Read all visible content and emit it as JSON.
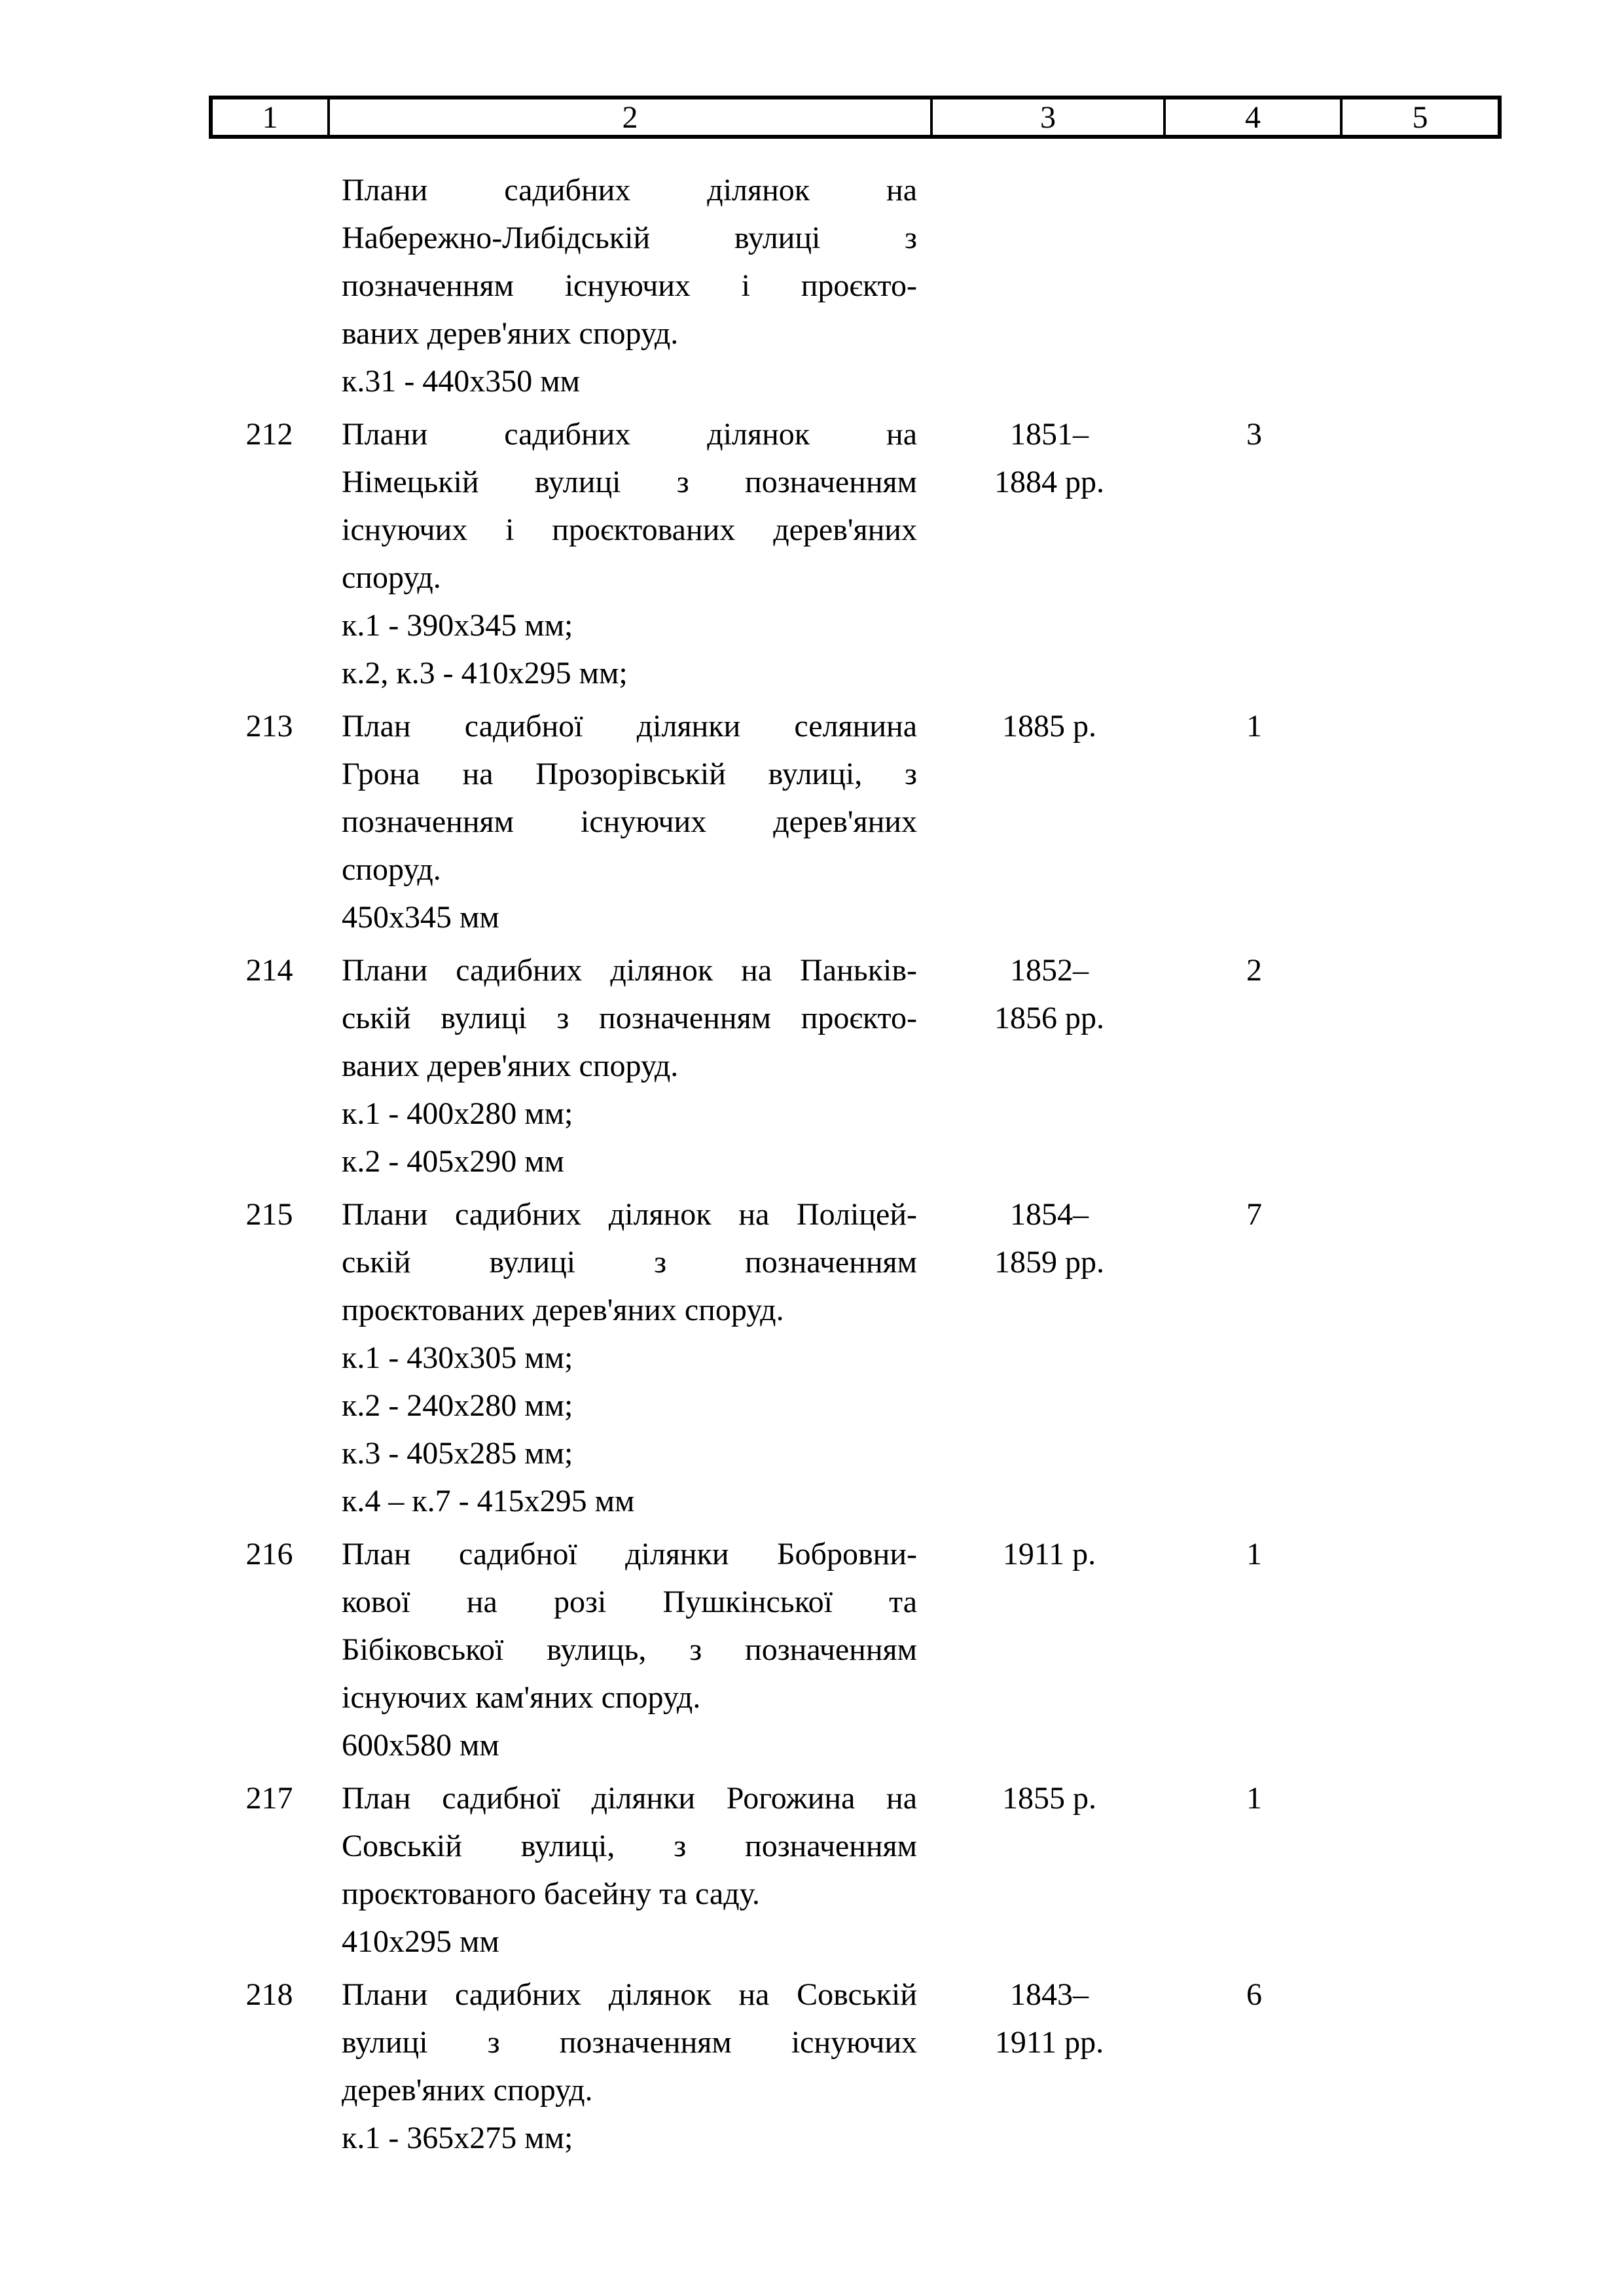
{
  "colors": {
    "background": "#ffffff",
    "text": "#000000",
    "border": "#000000"
  },
  "table": {
    "header": {
      "columns": [
        "1",
        "2",
        "3",
        "4",
        "5"
      ]
    },
    "rows": [
      {
        "number": "",
        "para_lines": [
          "Плани садибних ділянок на",
          "Набережно-Либідській вулиці з",
          "позначенням існуючих і проєкто-",
          "ваних дерев'яних споруд."
        ],
        "size_lines": [
          "к.31 - 440х350 мм"
        ],
        "date_lines": [],
        "count": "",
        "notes": ""
      },
      {
        "number": "212",
        "para_lines": [
          "Плани садибних ділянок на",
          "Німецькій вулиці з позначенням",
          "існуючих і проєктованих дерев'яних",
          "споруд."
        ],
        "size_lines": [
          "к.1 - 390х345 мм;",
          "к.2, к.3 - 410х295 мм;"
        ],
        "date_lines": [
          "1851–",
          "1884 рр."
        ],
        "count": "3",
        "notes": ""
      },
      {
        "number": "213",
        "para_lines": [
          "План садибної ділянки селянина",
          "Грона на Прозорівській вулиці, з",
          "позначенням існуючих дерев'яних",
          "споруд."
        ],
        "size_lines": [
          "450х345 мм"
        ],
        "date_lines": [
          "1885 р."
        ],
        "count": "1",
        "notes": ""
      },
      {
        "number": "214",
        "para_lines": [
          "Плани садибних ділянок на Паньків-",
          "ській вулиці з позначенням проєкто-",
          "ваних дерев'яних споруд."
        ],
        "size_lines": [
          "к.1 - 400х280 мм;",
          "к.2 - 405х290 мм"
        ],
        "date_lines": [
          "1852–",
          "1856 рр."
        ],
        "count": "2",
        "notes": ""
      },
      {
        "number": "215",
        "para_lines": [
          "Плани садибних ділянок на Поліцей-",
          "ській вулиці з позначенням",
          "проєктованих дерев'яних споруд."
        ],
        "size_lines": [
          "к.1 - 430х305 мм;",
          "к.2 - 240х280 мм;",
          "к.3 - 405х285 мм;",
          "к.4 – к.7 - 415х295 мм"
        ],
        "date_lines": [
          "1854–",
          "1859 рр."
        ],
        "count": "7",
        "notes": ""
      },
      {
        "number": "216",
        "para_lines": [
          "План садибної ділянки Бобровни-",
          "кової на розі Пушкінської та",
          "Бібіковської вулиць, з позначенням",
          "існуючих кам'яних споруд."
        ],
        "size_lines": [
          "600х580 мм"
        ],
        "date_lines": [
          "1911 р."
        ],
        "count": "1",
        "notes": ""
      },
      {
        "number": "217",
        "para_lines": [
          "План садибної ділянки Рогожина на",
          "Совській вулиці, з позначенням",
          "проєктованого басейну та саду."
        ],
        "size_lines": [
          "410х295 мм"
        ],
        "date_lines": [
          "1855 р."
        ],
        "count": "1",
        "notes": ""
      },
      {
        "number": "218",
        "para_lines": [
          "Плани садибних ділянок на Совській",
          "вулиці з позначенням існуючих",
          "дерев'яних споруд."
        ],
        "size_lines": [
          "к.1 - 365х275 мм;"
        ],
        "date_lines": [
          "1843–",
          "1911 рр."
        ],
        "count": "6",
        "notes": ""
      }
    ]
  }
}
